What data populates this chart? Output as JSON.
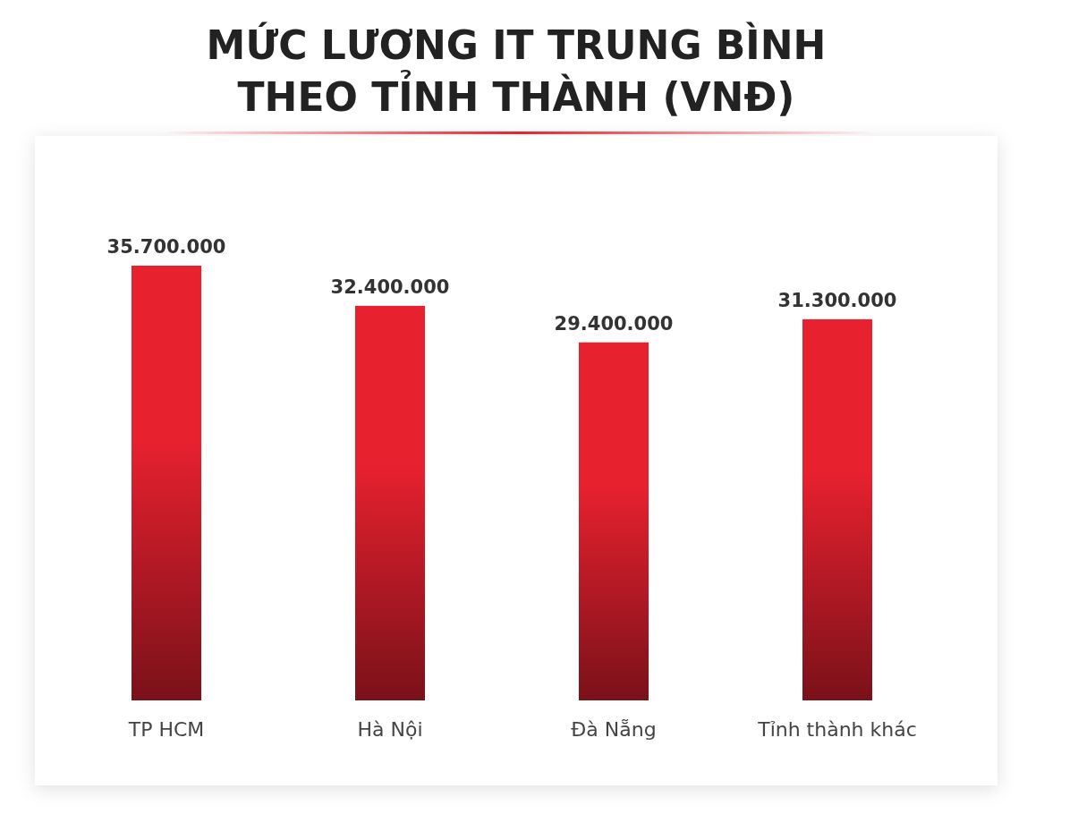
{
  "chart_data": {
    "type": "bar",
    "title": "MỨC LƯƠNG IT TRUNG BÌNH\nTHEO TỈNH THÀNH (VNĐ)",
    "categories": [
      "TP HCM",
      "Hà Nội",
      "Đà Nẵng",
      "Tỉnh thành khác"
    ],
    "values": [
      35700000,
      32400000,
      29400000,
      31300000
    ],
    "value_labels": [
      "35.700.000",
      "32.400.000",
      "29.400.000",
      "31.300.000"
    ],
    "color": "#e8212f"
  }
}
